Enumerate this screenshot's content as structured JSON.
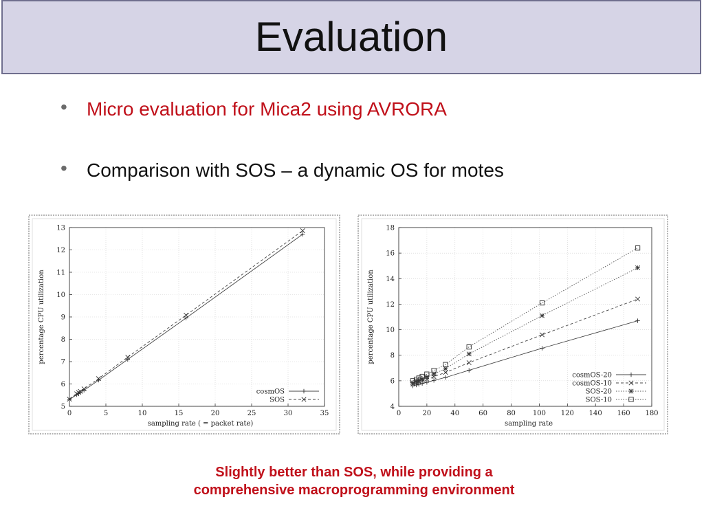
{
  "slide": {
    "title": "Evaluation",
    "bullets": [
      {
        "text": "Micro evaluation for Mica2 using AVRORA",
        "color": "#c0101a"
      },
      {
        "text": "Comparison with SOS – a dynamic OS for motes",
        "color": "#111111"
      }
    ],
    "caption_line1": "Slightly better than SOS, while providing a",
    "caption_line2": "comprehensive macroprogramming environment",
    "colors": {
      "title_bg": "#d6d4e6",
      "title_border": "#6f6e8e",
      "caption": "#c0101a",
      "bullet_dot": "#6b6b6b"
    }
  },
  "chart_data": [
    {
      "type": "line",
      "title": "",
      "xlabel": "sampling rate ( = packet rate)",
      "ylabel": "percentage CPU utilization",
      "xlim": [
        0,
        35
      ],
      "ylim": [
        5,
        13
      ],
      "xticks": [
        0,
        5,
        10,
        15,
        20,
        25,
        30,
        35
      ],
      "yticks": [
        5,
        6,
        7,
        8,
        9,
        10,
        11,
        12,
        13
      ],
      "grid": true,
      "legend": "bottom-right",
      "series": [
        {
          "name": "cosmOS",
          "marker": "+",
          "dash": "solid",
          "x": [
            0,
            1,
            1.25,
            1.5,
            2,
            4,
            8,
            16,
            32
          ],
          "y": [
            5.3,
            5.52,
            5.57,
            5.62,
            5.72,
            6.17,
            7.1,
            8.95,
            12.7
          ]
        },
        {
          "name": "SOS",
          "marker": "x",
          "dash": "dashed",
          "x": [
            0,
            1,
            1.25,
            1.5,
            2,
            4,
            8,
            16,
            32
          ],
          "y": [
            5.32,
            5.56,
            5.62,
            5.67,
            5.78,
            6.24,
            7.2,
            9.08,
            12.86
          ]
        }
      ]
    },
    {
      "type": "line",
      "title": "",
      "xlabel": "sampling rate",
      "ylabel": "percentage CPU utilization",
      "xlim": [
        0,
        180
      ],
      "ylim": [
        4,
        18
      ],
      "xticks": [
        0,
        20,
        40,
        60,
        80,
        100,
        120,
        140,
        160,
        180
      ],
      "yticks": [
        4,
        6,
        8,
        10,
        12,
        14,
        16,
        18
      ],
      "grid": true,
      "legend": "bottom-right",
      "series": [
        {
          "name": "cosmOS-20",
          "marker": "+",
          "dash": "solid",
          "x": [
            10,
            12.5,
            14.3,
            16.7,
            20,
            25,
            33.3,
            50,
            102,
            170
          ],
          "y": [
            5.6,
            5.67,
            5.72,
            5.79,
            5.88,
            6.03,
            6.26,
            6.82,
            8.55,
            10.7
          ]
        },
        {
          "name": "cosmOS-10",
          "marker": "x",
          "dash": "dashed",
          "x": [
            10,
            12.5,
            14.3,
            16.7,
            20,
            25,
            33.3,
            50,
            102,
            170
          ],
          "y": [
            5.75,
            5.84,
            5.91,
            6.0,
            6.13,
            6.33,
            6.65,
            7.42,
            9.6,
            12.4
          ]
        },
        {
          "name": "SOS-20",
          "marker": "*",
          "dash": "dotted",
          "x": [
            10,
            12.5,
            14.3,
            16.7,
            20,
            25,
            33.3,
            50,
            102,
            170
          ],
          "y": [
            5.85,
            5.95,
            6.03,
            6.14,
            6.3,
            6.54,
            6.95,
            8.1,
            11.1,
            14.85
          ]
        },
        {
          "name": "SOS-10",
          "marker": "square",
          "dash": "dotted",
          "x": [
            10,
            12.5,
            14.3,
            16.7,
            20,
            25,
            33.3,
            50,
            102,
            170
          ],
          "y": [
            6.0,
            6.12,
            6.21,
            6.34,
            6.52,
            6.8,
            7.27,
            8.65,
            12.1,
            16.4
          ]
        }
      ]
    }
  ]
}
